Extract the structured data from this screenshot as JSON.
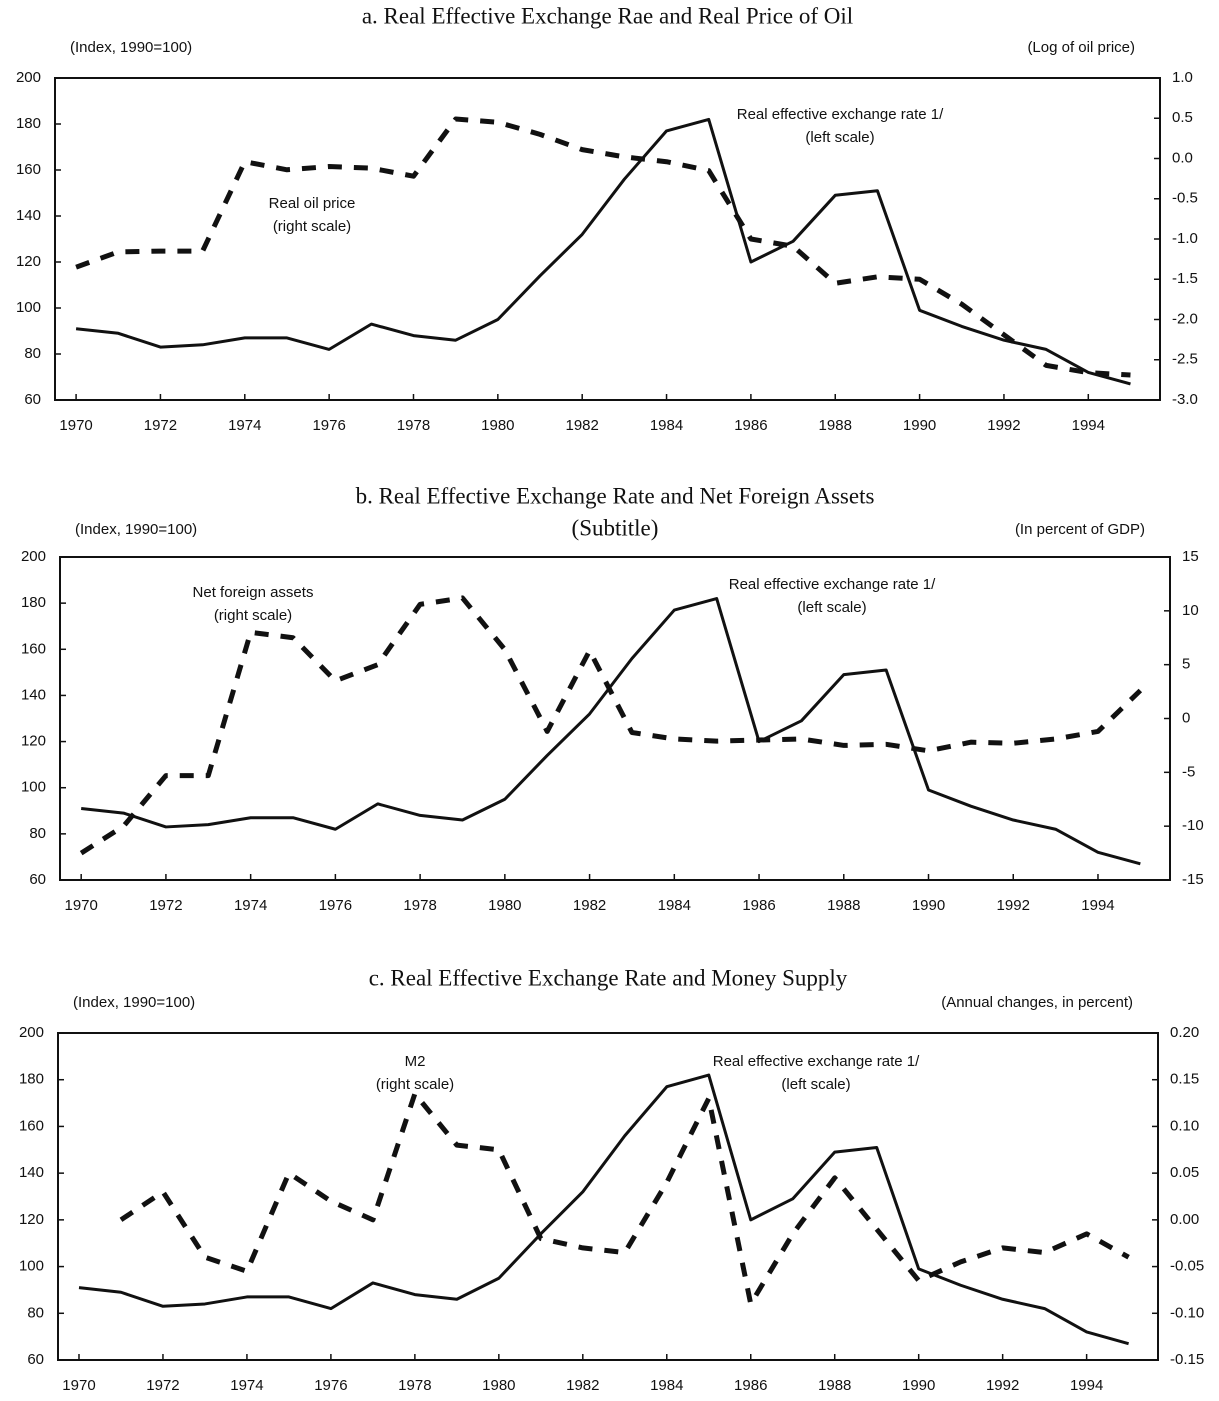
{
  "chart_data": [
    {
      "type": "line",
      "title": "a. Real Effective Exchange Rae and Real Price of Oil",
      "ylabel": "(Index, 1990=100)",
      "y2label": "(Log of oil price)",
      "x": [
        1970,
        1971,
        1972,
        1973,
        1974,
        1975,
        1976,
        1977,
        1978,
        1979,
        1980,
        1981,
        1982,
        1983,
        1984,
        1985,
        1986,
        1987,
        1988,
        1989,
        1990,
        1991,
        1992,
        1993,
        1994,
        1995
      ],
      "xlim": [
        1969.5,
        1995.7
      ],
      "xticks": [
        1970,
        1972,
        1974,
        1976,
        1978,
        1980,
        1982,
        1984,
        1986,
        1988,
        1990,
        1992,
        1994
      ],
      "ylim": [
        60,
        200
      ],
      "yticks": [
        60,
        80,
        100,
        120,
        140,
        160,
        180,
        200
      ],
      "y2lim": [
        -3,
        1
      ],
      "y2ticks": [
        {
          "value": -3,
          "label": "-3.0"
        },
        -2.5,
        {
          "value": -2,
          "label": "-2.0"
        },
        -1.5,
        {
          "value": -1,
          "label": "-1.0"
        },
        -0.5,
        {
          "value": 0,
          "label": "0.0"
        },
        0.5,
        {
          "value": 1,
          "label": "1.0"
        }
      ],
      "series": [
        {
          "name": "Real effective exchange rate 1/",
          "note": "(left scale)",
          "color": "#111111",
          "style": "solid",
          "values": [
            91,
            89,
            83,
            84,
            87,
            87,
            82,
            93,
            88,
            86,
            95,
            114,
            132,
            156,
            177,
            182,
            120,
            129,
            149,
            151,
            99,
            92,
            86,
            82,
            72,
            67
          ]
        },
        {
          "name": "Real oil price",
          "note": "(right scale)",
          "color": "#111111",
          "style": "dashed",
          "axis": "y2",
          "values": [
            -1.35,
            -1.16,
            -1.15,
            -1.15,
            -0.04,
            -0.14,
            -0.1,
            -0.12,
            -0.22,
            0.49,
            0.45,
            0.3,
            0.11,
            0.02,
            -0.04,
            -0.15,
            -1.0,
            -1.09,
            -1.55,
            -1.47,
            -1.5,
            -1.81,
            -2.19,
            -2.57,
            -2.66,
            -2.69
          ]
        }
      ]
    },
    {
      "type": "line",
      "title": "b. Real Effective Exchange Rate and Net Foreign Assets",
      "subtitle": "(Subtitle)",
      "ylabel": "(Index, 1990=100)",
      "y2label": "(In percent of GDP)",
      "x": [
        1970,
        1971,
        1972,
        1973,
        1974,
        1975,
        1976,
        1977,
        1978,
        1979,
        1980,
        1981,
        1982,
        1983,
        1984,
        1985,
        1986,
        1987,
        1988,
        1989,
        1990,
        1991,
        1992,
        1993,
        1994,
        1995
      ],
      "xlim": [
        1969.5,
        1995.7
      ],
      "xticks": [
        1970,
        1972,
        1974,
        1976,
        1978,
        1980,
        1982,
        1984,
        1986,
        1988,
        1990,
        1992,
        1994
      ],
      "ylim": [
        60,
        200
      ],
      "yticks": [
        60,
        80,
        100,
        120,
        140,
        160,
        180,
        200
      ],
      "y2lim": [
        -15,
        15
      ],
      "y2ticks": [
        -15,
        -10,
        -5,
        0,
        5,
        10,
        15
      ],
      "series": [
        {
          "name": "Real effective exchange rate 1/",
          "note": "(left scale)",
          "color": "#111111",
          "style": "solid",
          "values": [
            91,
            89,
            83,
            84,
            87,
            87,
            82,
            93,
            88,
            86,
            95,
            114,
            132,
            156,
            177,
            182,
            120,
            129,
            149,
            151,
            99,
            92,
            86,
            82,
            72,
            67
          ]
        },
        {
          "name": "Net foreign assets",
          "note": "(right scale)",
          "color": "#111111",
          "style": "dashed",
          "axis": "y2",
          "values": [
            -12.5,
            -10,
            -5.3,
            -5.3,
            8,
            7.5,
            3.5,
            5,
            10.6,
            11.2,
            6.4,
            -1.2,
            6.3,
            -1.3,
            -1.9,
            -2.1,
            -2,
            -1.9,
            -2.5,
            -2.4,
            -3,
            -2.2,
            -2.3,
            -1.9,
            -1.2,
            2.6
          ]
        }
      ]
    },
    {
      "type": "line",
      "title": "c. Real Effective Exchange Rate and Money Supply",
      "ylabel": "(Index, 1990=100)",
      "y2label": "(Annual changes, in percent)",
      "x": [
        1970,
        1971,
        1972,
        1973,
        1974,
        1975,
        1976,
        1977,
        1978,
        1979,
        1980,
        1981,
        1982,
        1983,
        1984,
        1985,
        1986,
        1987,
        1988,
        1989,
        1990,
        1991,
        1992,
        1993,
        1994,
        1995
      ],
      "xlim": [
        1969.5,
        1995.7
      ],
      "xticks": [
        1970,
        1972,
        1974,
        1976,
        1978,
        1980,
        1982,
        1984,
        1986,
        1988,
        1990,
        1992,
        1994
      ],
      "ylim": [
        60,
        200
      ],
      "yticks": [
        60,
        80,
        100,
        120,
        140,
        160,
        180,
        200
      ],
      "y2lim": [
        -0.15,
        0.2
      ],
      "y2ticks": [
        -0.15,
        {
          "value": -0.1,
          "label": "-0.10"
        },
        -0.05,
        {
          "value": 0,
          "label": "0.00"
        },
        0.05,
        {
          "value": 0.1,
          "label": "0.10"
        },
        0.15,
        {
          "value": 0.2,
          "label": "0.20"
        }
      ],
      "series": [
        {
          "name": "Real effective exchange rate 1/",
          "note": "(left scale)",
          "color": "#111111",
          "style": "solid",
          "values": [
            91,
            89,
            83,
            84,
            87,
            87,
            82,
            93,
            88,
            86,
            95,
            114,
            132,
            156,
            177,
            182,
            120,
            129,
            149,
            151,
            99,
            92,
            86,
            82,
            72,
            67
          ]
        },
        {
          "name": "M2",
          "note": "(right scale)",
          "color": "#111111",
          "style": "dashed",
          "axis": "y2",
          "values": [
            null,
            0.0,
            0.03,
            -0.04,
            -0.055,
            0.05,
            0.02,
            0.0,
            0.135,
            0.08,
            0.075,
            -0.02,
            -0.03,
            -0.035,
            0.04,
            0.13,
            -0.09,
            -0.015,
            0.045,
            -0.01,
            -0.065,
            -0.045,
            -0.03,
            -0.035,
            -0.015,
            -0.04
          ]
        }
      ]
    }
  ]
}
